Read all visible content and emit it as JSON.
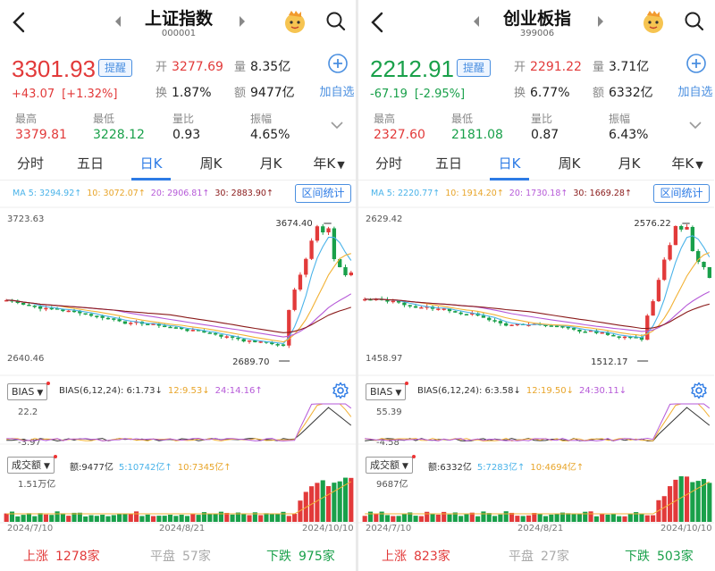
{
  "colors": {
    "up": "#e23a3a",
    "down": "#19a04a",
    "accent": "#2d7be5",
    "ma5": "#4ab3e9",
    "ma10": "#f2b134",
    "ma20": "#b65ad8",
    "ma30": "#8a1a1a"
  },
  "panels": [
    {
      "title": "上证指数",
      "code": "000001",
      "price": "3301.93",
      "dir": "up",
      "remind_label": "提醒",
      "change": "+43.07",
      "change_pct": "[+1.32%]",
      "open_label": "开",
      "open": "3277.69",
      "vol_label": "量",
      "vol": "8.35亿",
      "turnover_label": "换",
      "turnover": "1.87%",
      "amount_label": "额",
      "amount": "9477亿",
      "add_fav": "加自选",
      "stats": [
        {
          "label": "最高",
          "value": "3379.81",
          "dir": "up"
        },
        {
          "label": "最低",
          "value": "3228.12",
          "dir": "down"
        },
        {
          "label": "量比",
          "value": "0.93",
          "dir": "flat"
        },
        {
          "label": "振幅",
          "value": "4.65%",
          "dir": "flat"
        }
      ],
      "tabs": [
        "分时",
        "五日",
        "日K",
        "周K",
        "月K",
        "年K"
      ],
      "active_tab": 2,
      "ma": [
        "MA 5: 3294.92↑",
        "10: 3072.07↑",
        "20: 2906.81↑",
        "30: 2883.90↑"
      ],
      "range_stat": "区间统计",
      "y_top": "3723.63",
      "y_bottom": "2640.46",
      "high_label": "3674.40",
      "low_label": "2689.70",
      "bias_label": "BIAS",
      "bias_vals": [
        "BIAS(6,12,24): 6:1.73↓",
        "12:9.53↓",
        "24:14.16↑"
      ],
      "bias_top": "22.2",
      "bias_bottom": "-3.97",
      "vol_ind_label": "成交额",
      "vol_vals": [
        "额:9477亿",
        "5:10742亿↑",
        "10:7345亿↑"
      ],
      "vol_top": "1.51万亿",
      "dates": [
        "2024/7/10",
        "2024/8/21",
        "2024/10/10"
      ],
      "rise_label": "上涨",
      "rise": "1278家",
      "flat_label": "平盘",
      "flat": "57家",
      "fall_label": "下跌",
      "fall": "975家"
    },
    {
      "title": "创业板指",
      "code": "399006",
      "price": "2212.91",
      "dir": "down",
      "remind_label": "提醒",
      "change": "-67.19",
      "change_pct": "[-2.95%]",
      "open_label": "开",
      "open": "2291.22",
      "vol_label": "量",
      "vol": "3.71亿",
      "turnover_label": "换",
      "turnover": "6.77%",
      "amount_label": "额",
      "amount": "6332亿",
      "add_fav": "加自选",
      "stats": [
        {
          "label": "最高",
          "value": "2327.60",
          "dir": "up"
        },
        {
          "label": "最低",
          "value": "2181.08",
          "dir": "down"
        },
        {
          "label": "量比",
          "value": "0.87",
          "dir": "flat"
        },
        {
          "label": "振幅",
          "value": "6.43%",
          "dir": "flat"
        }
      ],
      "tabs": [
        "分时",
        "五日",
        "日K",
        "周K",
        "月K",
        "年K"
      ],
      "active_tab": 2,
      "ma": [
        "MA 5: 2220.77↑",
        "10: 1914.20↑",
        "20: 1730.18↑",
        "30: 1669.28↑"
      ],
      "range_stat": "区间统计",
      "y_top": "2629.42",
      "y_bottom": "1458.97",
      "high_label": "2576.22",
      "low_label": "1512.17",
      "bias_label": "BIAS",
      "bias_vals": [
        "BIAS(6,12,24): 6:3.58↓",
        "12:19.50↓",
        "24:30.11↓"
      ],
      "bias_top": "55.39",
      "bias_bottom": "-4.58",
      "vol_ind_label": "成交额",
      "vol_vals": [
        "额:6332亿",
        "5:7283亿↑",
        "10:4694亿↑"
      ],
      "vol_top": "9687亿",
      "dates": [
        "2024/7/10",
        "2024/8/21",
        "2024/10/10"
      ],
      "rise_label": "上涨",
      "rise": "823家",
      "flat_label": "平盘",
      "flat": "27家",
      "fall_label": "下跌",
      "fall": "503家"
    }
  ]
}
